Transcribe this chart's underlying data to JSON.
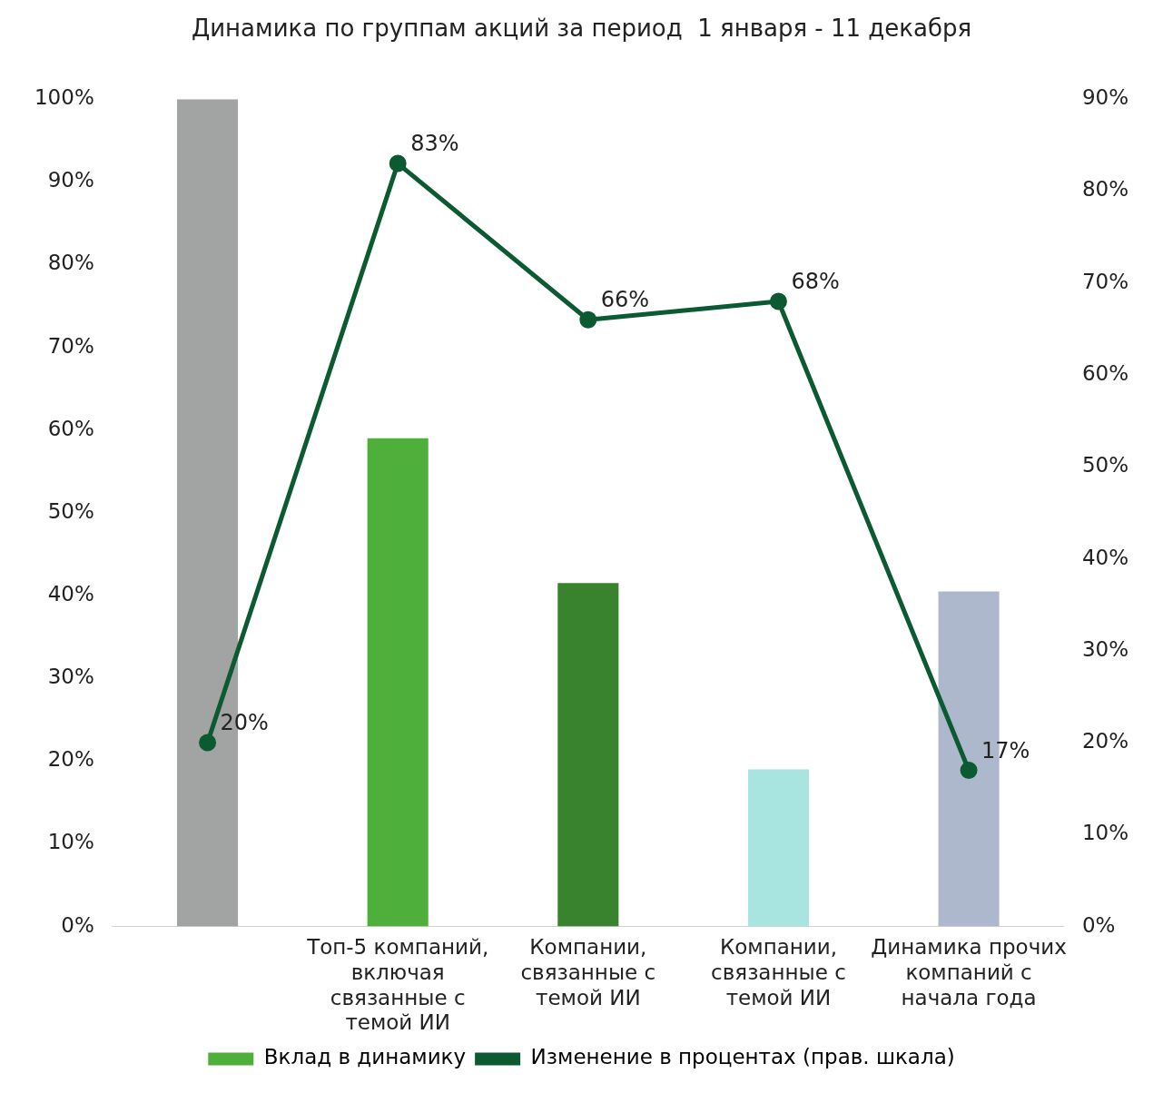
{
  "chart_data": {
    "type": "bar",
    "title": "Динамика по группам акций за период  1 января - 11 декабря",
    "categories": [
      null,
      "Топ-5 компаний, включая связанные с темой ИИ",
      "Компании, связанные с темой ИИ",
      "Компании, связанные с темой ИИ",
      "Динамика прочих компаний с начала года"
    ],
    "series": [
      {
        "name": "Вклад в динамику",
        "color": "#4faf3b",
        "colors": [
          "#a2a4a3",
          "#4faf3b",
          "#3a832e",
          "#a8e4e0",
          "#aeb8cc"
        ],
        "values": [
          100,
          59,
          41.5,
          19,
          40.5
        ]
      },
      {
        "name": "Изменение в процентах (прав. шкала)",
        "type": "line",
        "axis": "y2",
        "color": "#0b5a32",
        "marker": "circle",
        "values": [
          20,
          83,
          66,
          68,
          17
        ],
        "value_labels": [
          "20%",
          "83%",
          "66%",
          "68%",
          "17%"
        ]
      }
    ],
    "ylim": [
      0,
      100
    ],
    "yticks": [
      {
        "value": 0,
        "label": "0%"
      },
      {
        "value": 10,
        "label": "10%"
      },
      {
        "value": 20,
        "label": "20%"
      },
      {
        "value": 30,
        "label": "30%"
      },
      {
        "value": 40,
        "label": "40%"
      },
      {
        "value": 50,
        "label": "50%"
      },
      {
        "value": 60,
        "label": "60%"
      },
      {
        "value": 70,
        "label": "70%"
      },
      {
        "value": 80,
        "label": "80%"
      },
      {
        "value": 90,
        "label": "90%"
      },
      {
        "value": 100,
        "label": "100%"
      }
    ],
    "y2lim": [
      0,
      90
    ],
    "y2ticks": [
      {
        "value": 0,
        "label": "0%"
      },
      {
        "value": 10,
        "label": "10%"
      },
      {
        "value": 20,
        "label": "20%"
      },
      {
        "value": 30,
        "label": "30%"
      },
      {
        "value": 40,
        "label": "40%"
      },
      {
        "value": 50,
        "label": "50%"
      },
      {
        "value": 60,
        "label": "60%"
      },
      {
        "value": 70,
        "label": "70%"
      },
      {
        "value": 80,
        "label": "80%"
      },
      {
        "value": 90,
        "label": "90%"
      }
    ],
    "grid": false,
    "legend": "bottom"
  }
}
